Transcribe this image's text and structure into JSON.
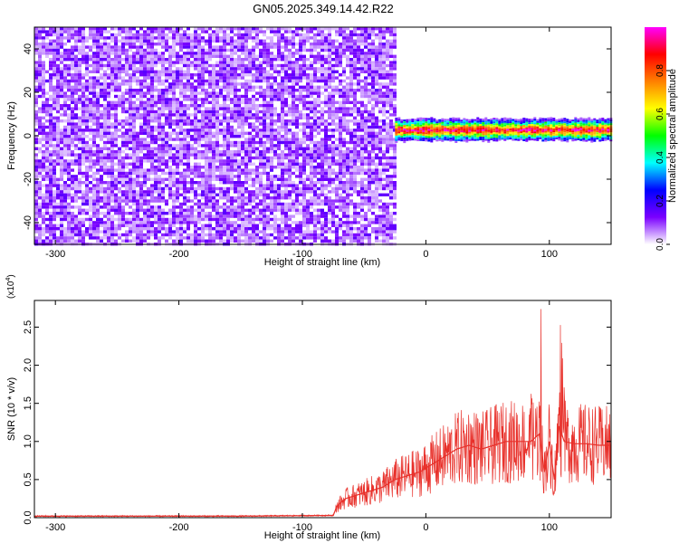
{
  "figure": {
    "title": "GN05.2025.349.14.42.R22"
  },
  "chart_data": [
    {
      "type": "heatmap",
      "xlabel": "Height of straight line (km)",
      "ylabel": "Frequency (Hz)",
      "xlim": [
        -317,
        150
      ],
      "ylim": [
        -50,
        50
      ],
      "x_ticks": [
        -300,
        -200,
        -100,
        0,
        100
      ],
      "x_tick_labels": [
        "-300",
        "-200",
        "-100",
        "0",
        "100"
      ],
      "y_ticks": [
        -40,
        -20,
        0,
        20,
        40
      ],
      "y_tick_labels": [
        "-40",
        "-20",
        "0",
        "20",
        "40"
      ],
      "noise_region_x": [
        -317,
        -25
      ],
      "signal_region_x": [
        -25,
        150
      ],
      "signal_band_hz": [
        -2,
        8
      ],
      "signal_center_hz": 3,
      "colorbar": {
        "label": "Normalized spectral amplitude",
        "range": [
          0.0,
          1.0
        ],
        "ticks": [
          0.0,
          0.2,
          0.4,
          0.6,
          0.8
        ],
        "tick_labels": [
          "0.0",
          "0.2",
          "0.4",
          "0.6",
          "0.8"
        ],
        "colormap": [
          "#ffffff",
          "#7a00ff",
          "#0000ff",
          "#00ffff",
          "#00ff00",
          "#ffff00",
          "#ff8000",
          "#ff0000",
          "#ff00ff"
        ]
      },
      "grid": false
    },
    {
      "type": "line",
      "xlabel": "Height of straight line (km)",
      "ylabel": "SNR (10 * v/v)",
      "y_multiplier_label": "(x10",
      "y_multiplier_exp": "4",
      "y_multiplier_close": ")",
      "xlim": [
        -317,
        150
      ],
      "ylim": [
        0,
        2.85
      ],
      "x_ticks": [
        -300,
        -200,
        -100,
        0,
        100
      ],
      "x_tick_labels": [
        "-300",
        "-200",
        "-100",
        "0",
        "100"
      ],
      "y_ticks": [
        0.0,
        0.5,
        1.0,
        1.5,
        2.0,
        2.5
      ],
      "y_tick_labels": [
        "0.0",
        "0.5",
        "1.0",
        "1.5",
        "2.0",
        "2.5"
      ],
      "series_color": "#e8302a",
      "series": [
        {
          "x": [
            -317,
            -250,
            -150,
            -75,
            -72,
            -65,
            -55,
            -45,
            -35,
            -25,
            -15,
            -5,
            5,
            15,
            25,
            35,
            45,
            55,
            65,
            75,
            85,
            92,
            96,
            100,
            104,
            108,
            112,
            120,
            130,
            140,
            150
          ],
          "y": [
            0.02,
            0.02,
            0.02,
            0.03,
            0.15,
            0.25,
            0.3,
            0.35,
            0.4,
            0.5,
            0.55,
            0.6,
            0.7,
            0.8,
            0.9,
            0.95,
            0.9,
            0.95,
            1.0,
            1.0,
            1.0,
            1.1,
            0.6,
            1.0,
            0.5,
            1.2,
            1.0,
            0.97,
            0.97,
            0.95,
            0.95
          ]
        }
      ],
      "grid": false
    }
  ]
}
